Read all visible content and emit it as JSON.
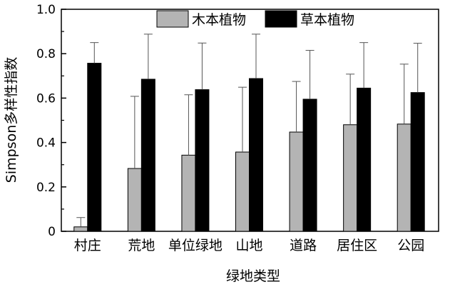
{
  "chart_data": {
    "type": "bar",
    "xlabel": "绿地类型",
    "ylabel": "Simpson多样性指数",
    "ylim": [
      0,
      1.0
    ],
    "yticks": [
      "0",
      "0.2",
      "0.4",
      "0.6",
      "0.8",
      "1.0"
    ],
    "ytick_values": [
      0,
      0.2,
      0.4,
      0.6,
      0.8,
      1.0
    ],
    "categories": [
      "村庄",
      "荒地",
      "单位绿地",
      "山地",
      "道路",
      "居住区",
      "公园"
    ],
    "series": [
      {
        "name": "木本植物",
        "color": "#b4b4b4",
        "values": [
          0.02,
          0.283,
          0.343,
          0.357,
          0.447,
          0.48,
          0.483
        ],
        "error": [
          0.042,
          0.325,
          0.272,
          0.292,
          0.228,
          0.228,
          0.27
        ]
      },
      {
        "name": "草本植物",
        "color": "#000000",
        "values": [
          0.757,
          0.685,
          0.638,
          0.688,
          0.595,
          0.645,
          0.625
        ],
        "error": [
          0.093,
          0.203,
          0.21,
          0.2,
          0.22,
          0.205,
          0.222
        ]
      }
    ],
    "grid": false,
    "legend_position": "top"
  }
}
